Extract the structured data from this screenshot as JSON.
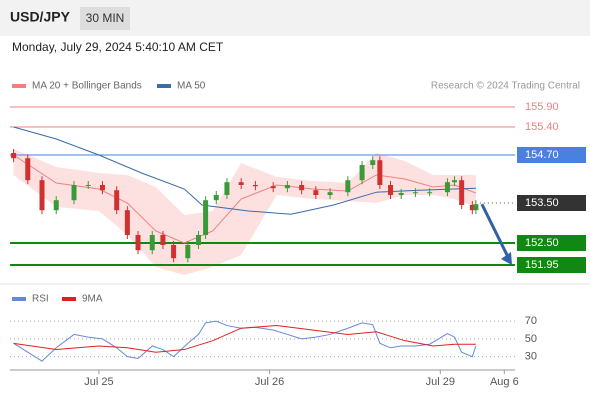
{
  "header": {
    "symbol": "USD/JPY",
    "interval": "30 MIN",
    "datetime": "Monday, July 29, 2024 5:40:10 AM CET",
    "credit": "Research © 2024 Trading Central"
  },
  "chart_data": [
    {
      "type": "candlestick",
      "xlim": [
        -25,
        117
      ],
      "ylim": [
        151.5,
        156.2
      ],
      "up_color": "#3a9a3a",
      "down_color": "#d03030",
      "x": [
        -24,
        -20,
        -16,
        -12,
        -7,
        -3,
        1,
        5,
        8,
        11,
        15,
        18,
        21,
        25,
        28,
        30,
        33,
        36,
        40,
        44,
        49,
        53,
        57,
        61,
        65,
        70,
        74,
        77,
        79,
        82,
        85,
        89,
        93,
        98,
        100,
        102,
        105,
        106
      ],
      "open": [
        154.75,
        154.62,
        154.07,
        153.32,
        153.57,
        153.95,
        153.95,
        153.82,
        153.32,
        152.7,
        152.32,
        152.7,
        152.45,
        152.12,
        152.45,
        152.7,
        153.57,
        153.7,
        154.02,
        153.95,
        153.92,
        153.87,
        153.95,
        153.82,
        153.7,
        153.77,
        154.07,
        154.45,
        154.57,
        153.95,
        153.7,
        153.75,
        153.77,
        153.77,
        154.02,
        154.07,
        153.45,
        153.32
      ],
      "high": [
        154.85,
        154.72,
        154.17,
        153.67,
        154.05,
        154.05,
        154.05,
        153.92,
        153.42,
        152.8,
        152.8,
        152.8,
        152.55,
        152.55,
        152.8,
        153.67,
        153.8,
        154.12,
        154.12,
        154.05,
        154.02,
        154.05,
        154.05,
        153.92,
        153.87,
        154.17,
        154.55,
        154.67,
        154.67,
        154.05,
        153.85,
        153.87,
        153.87,
        154.12,
        154.17,
        154.17,
        153.55,
        153.57
      ],
      "low": [
        154.52,
        153.97,
        153.22,
        153.22,
        153.47,
        153.85,
        153.72,
        153.22,
        152.6,
        152.22,
        152.22,
        152.35,
        152.02,
        152.02,
        152.35,
        152.6,
        153.47,
        153.6,
        153.85,
        153.82,
        153.77,
        153.77,
        153.72,
        153.6,
        153.6,
        153.67,
        153.97,
        154.35,
        153.85,
        153.6,
        153.6,
        153.65,
        153.67,
        153.67,
        153.92,
        153.35,
        153.22,
        153.22
      ],
      "close": [
        154.62,
        154.07,
        153.32,
        153.57,
        153.95,
        153.95,
        153.82,
        153.32,
        152.7,
        152.32,
        152.7,
        152.45,
        152.12,
        152.45,
        152.7,
        153.57,
        153.7,
        154.02,
        153.95,
        153.92,
        153.87,
        153.95,
        153.82,
        153.7,
        153.77,
        154.07,
        154.45,
        154.57,
        153.95,
        153.7,
        153.75,
        153.77,
        153.77,
        154.02,
        154.07,
        153.45,
        153.32,
        153.47
      ],
      "series": [
        {
          "name": "MA 20 + Bollinger Bands",
          "color": "#f08080",
          "band_color": "#fcd9d9",
          "x": [
            -24,
            -12,
            0,
            8,
            16,
            24,
            32,
            40,
            50,
            60,
            70,
            78,
            86,
            94,
            100,
            106
          ],
          "values": [
            154.7,
            154.0,
            153.85,
            153.5,
            152.8,
            152.5,
            152.8,
            153.6,
            153.95,
            153.85,
            153.8,
            154.2,
            154.1,
            153.9,
            153.95,
            153.75
          ],
          "upper": [
            154.85,
            154.4,
            154.25,
            154.2,
            153.9,
            153.2,
            153.3,
            154.5,
            154.15,
            154.05,
            154.0,
            154.75,
            154.55,
            154.2,
            154.2,
            154.2
          ],
          "lower": [
            154.2,
            153.4,
            153.3,
            152.7,
            151.9,
            151.7,
            151.9,
            152.2,
            153.7,
            153.6,
            153.55,
            153.5,
            153.7,
            153.7,
            153.6,
            153.4
          ]
        },
        {
          "name": "MA 50",
          "color": "#3a6aa8",
          "x": [
            -24,
            -12,
            0,
            12,
            24,
            29,
            42,
            54,
            66,
            78,
            90,
            106
          ],
          "values": [
            155.4,
            155.1,
            154.7,
            154.25,
            153.85,
            153.45,
            153.3,
            153.22,
            153.45,
            153.77,
            153.82,
            153.87
          ]
        }
      ],
      "levels": [
        {
          "value": 155.9,
          "label": "155.90",
          "color": "#f08080",
          "style": "text"
        },
        {
          "value": 155.4,
          "label": "155.40",
          "color": "#f08080",
          "style": "text"
        },
        {
          "value": 154.7,
          "label": "154.70",
          "color": "#4a80e0",
          "style": "box"
        },
        {
          "value": 153.5,
          "label": "153.50",
          "color": "#333333",
          "style": "current"
        },
        {
          "value": 152.5,
          "label": "152.50",
          "color": "#118811",
          "style": "box"
        },
        {
          "value": 151.95,
          "label": "151.95",
          "color": "#118811",
          "style": "box"
        }
      ]
    },
    {
      "type": "line",
      "ylim": [
        15,
        105
      ],
      "yticks": [
        70,
        50,
        30
      ],
      "xticks": [
        {
          "value": 0,
          "label": "Jul 25"
        },
        {
          "value": 48,
          "label": "Jul 26"
        },
        {
          "value": 96,
          "label": "Jul 29"
        },
        {
          "value": 114,
          "label": "Aug 6"
        }
      ],
      "series": [
        {
          "name": "RSI",
          "color": "#6688dd",
          "x": [
            -24,
            -20,
            -16,
            -12,
            -7,
            -3,
            1,
            5,
            8,
            11,
            15,
            18,
            21,
            25,
            28,
            30,
            33,
            36,
            40,
            44,
            49,
            53,
            57,
            61,
            65,
            70,
            74,
            77,
            79,
            82,
            85,
            89,
            93,
            98,
            100,
            102,
            105,
            106
          ],
          "values": [
            45,
            35,
            25,
            40,
            55,
            52,
            50,
            40,
            30,
            28,
            42,
            38,
            30,
            45,
            55,
            68,
            70,
            65,
            62,
            63,
            60,
            55,
            50,
            52,
            55,
            62,
            68,
            66,
            45,
            40,
            42,
            42,
            44,
            56,
            52,
            35,
            30,
            42
          ]
        },
        {
          "name": "9MA",
          "color": "#e02020",
          "x": [
            -24,
            -12,
            0,
            8,
            16,
            24,
            32,
            40,
            50,
            60,
            70,
            78,
            86,
            94,
            100,
            106
          ],
          "values": [
            45,
            38,
            42,
            40,
            35,
            38,
            48,
            62,
            65,
            60,
            55,
            58,
            48,
            42,
            44,
            44
          ]
        }
      ]
    }
  ]
}
